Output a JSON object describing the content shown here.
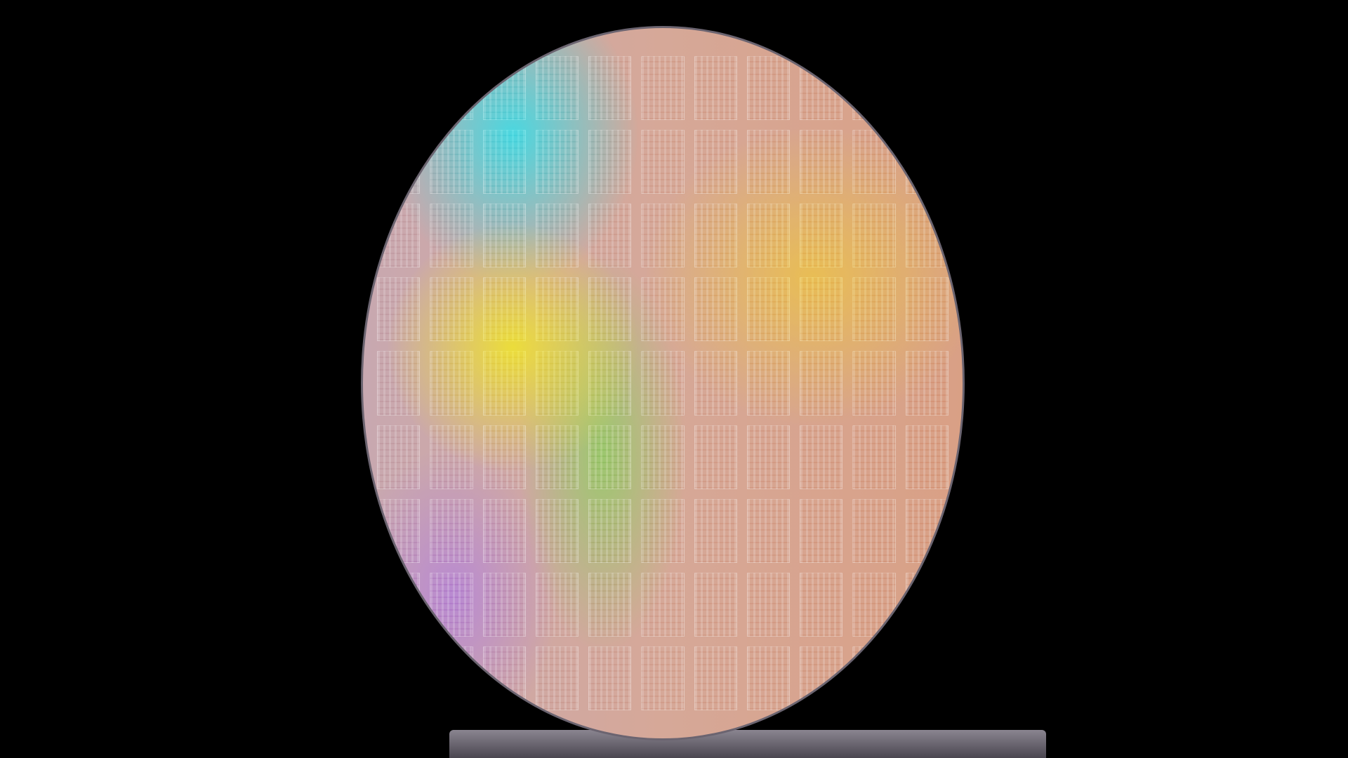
{
  "scene": {
    "subject": "silicon wafer",
    "colors": {
      "background": "#000000",
      "cyan": "#3cdce6",
      "yellow": "#f0e628",
      "pink": "#d6a898",
      "orange": "#d9a085"
    }
  }
}
